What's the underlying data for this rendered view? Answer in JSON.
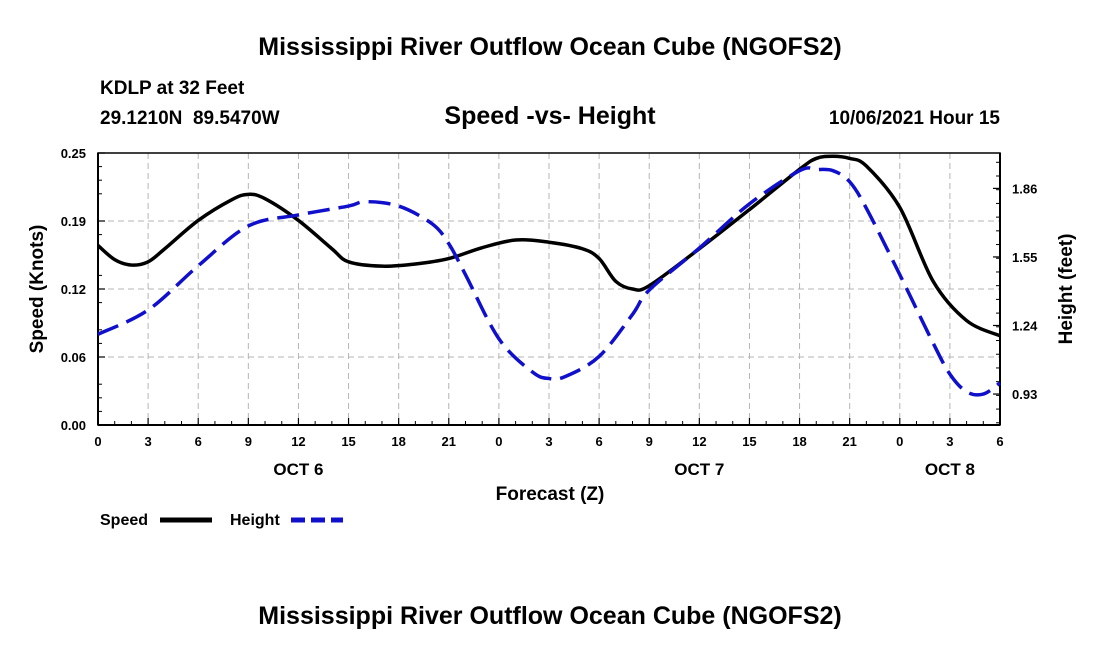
{
  "chart_data": {
    "type": "line",
    "title": "Mississippi River Outflow Ocean Cube (NGOFS2)",
    "footer_title": "Mississippi River Outflow Ocean Cube (NGOFS2)",
    "station": "KDLP at 32 Feet",
    "location": "29.1210N  89.5470W",
    "subtitle": "Speed -vs- Height",
    "timestamp": "10/06/2021 Hour 15",
    "xlabel": "Forecast (Z)",
    "ylabel_left": "Speed (Knots)",
    "ylabel_right": "Height (feet)",
    "x_range": [
      0,
      54
    ],
    "ylim_left": [
      0,
      0.25
    ],
    "ylim_right": [
      0.79,
      2.02
    ],
    "x_ticks": [
      0,
      3,
      6,
      9,
      12,
      15,
      18,
      21,
      24,
      27,
      30,
      33,
      36,
      39,
      42,
      45,
      48,
      51,
      54
    ],
    "x_tick_labels": [
      "0",
      "3",
      "6",
      "9",
      "12",
      "15",
      "18",
      "21",
      "0",
      "3",
      "6",
      "9",
      "12",
      "15",
      "18",
      "21",
      "0",
      "3",
      "6"
    ],
    "day_labels": [
      {
        "label": "OCT 6",
        "x": 12
      },
      {
        "label": "OCT 7",
        "x": 36
      },
      {
        "label": "OCT 8",
        "x": 51
      }
    ],
    "y_left_ticks": [
      0,
      0.0625,
      0.125,
      0.1875,
      0.25
    ],
    "y_left_tick_labels": [
      "0.00",
      "0.06",
      "0.12",
      "0.19",
      "0.25"
    ],
    "y_right_ticks": [
      0.93,
      1.24,
      1.55,
      1.86
    ],
    "y_right_tick_labels": [
      "0.93",
      "1.24",
      "1.55",
      "1.86"
    ],
    "grid": true,
    "legend": [
      {
        "name": "Speed",
        "color": "#000000",
        "dash": "solid"
      },
      {
        "name": "Height",
        "color": "#1010cc",
        "dash": "dashed"
      }
    ],
    "series": [
      {
        "name": "Speed",
        "axis": "left",
        "color": "#000000",
        "x": [
          0,
          1,
          2,
          3,
          4,
          6,
          8,
          9,
          10,
          12,
          14,
          15,
          17,
          19,
          21,
          23,
          25,
          27,
          29,
          30,
          31,
          32,
          33,
          36,
          39,
          42,
          43,
          44,
          45,
          46,
          48,
          50,
          52,
          54
        ],
        "y": [
          0.165,
          0.152,
          0.147,
          0.15,
          0.162,
          0.188,
          0.207,
          0.212,
          0.208,
          0.188,
          0.162,
          0.15,
          0.146,
          0.148,
          0.153,
          0.163,
          0.17,
          0.168,
          0.162,
          0.153,
          0.132,
          0.125,
          0.128,
          0.162,
          0.198,
          0.235,
          0.245,
          0.247,
          0.245,
          0.238,
          0.2,
          0.132,
          0.096,
          0.082
        ]
      },
      {
        "name": "Height",
        "axis": "right",
        "color": "#1010cc",
        "x": [
          0,
          3,
          6,
          9,
          12,
          15,
          16,
          18,
          20,
          21,
          22,
          24,
          26,
          27,
          28,
          30,
          32,
          33,
          36,
          39,
          42,
          43,
          44,
          45,
          46,
          48,
          50,
          51,
          52,
          53,
          54
        ],
        "y": [
          1.2,
          1.31,
          1.51,
          1.69,
          1.74,
          1.78,
          1.8,
          1.78,
          1.7,
          1.61,
          1.47,
          1.18,
          1.03,
          1.0,
          1.01,
          1.1,
          1.29,
          1.4,
          1.59,
          1.79,
          1.94,
          1.945,
          1.94,
          1.89,
          1.77,
          1.47,
          1.16,
          1.02,
          0.94,
          0.93,
          0.98
        ]
      }
    ]
  }
}
